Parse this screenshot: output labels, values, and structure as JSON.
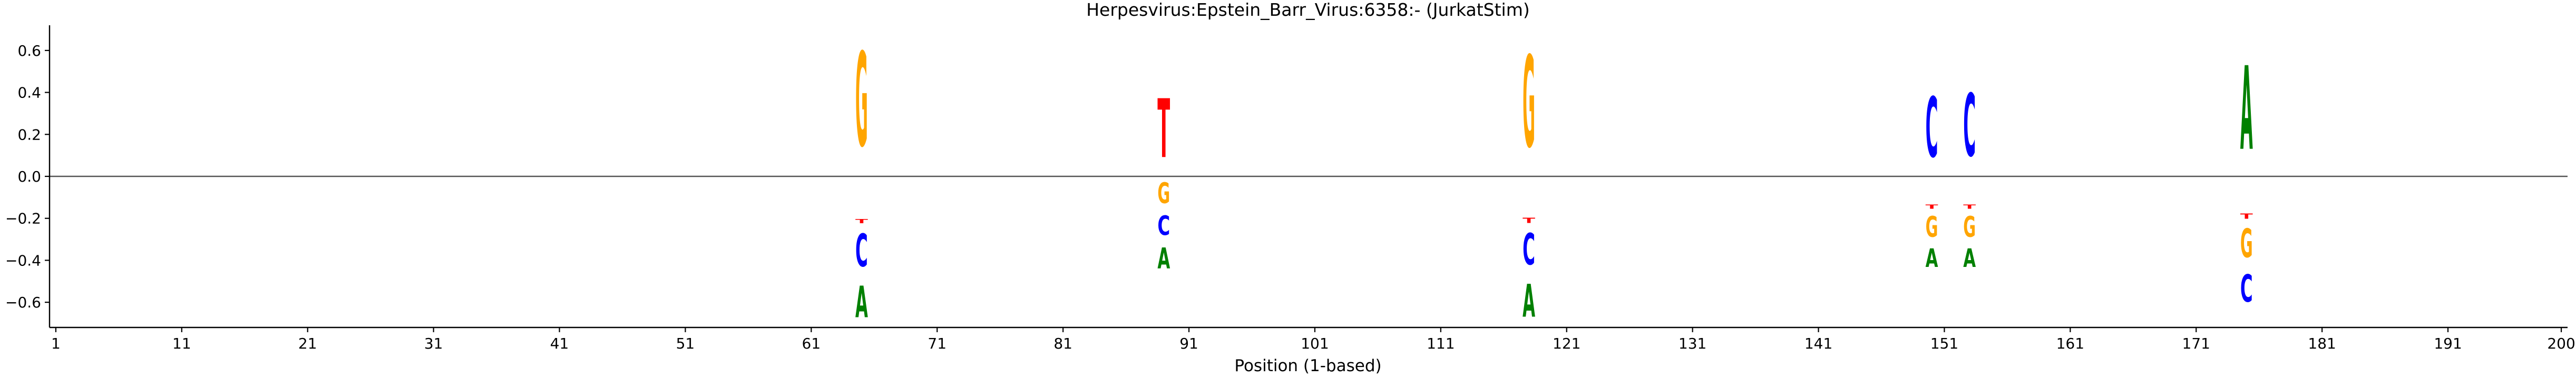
{
  "chart_data": {
    "type": "sequence-logo",
    "title": "Herpesvirus:Epstein_Barr_Virus:6358:-  (JurkatStim)",
    "xlabel": "Position (1-based)",
    "ylabel": "",
    "xlim": [
      0.5,
      200.5
    ],
    "ylim": [
      -0.72,
      0.72
    ],
    "x_ticks": [
      1,
      11,
      21,
      31,
      41,
      51,
      61,
      71,
      81,
      91,
      101,
      111,
      121,
      131,
      141,
      151,
      161,
      171,
      181,
      191,
      200
    ],
    "y_ticks": [
      -0.6,
      -0.4,
      -0.2,
      0.0,
      0.2,
      0.4,
      0.6
    ],
    "y_tick_labels": [
      "−0.6",
      "−0.4",
      "−0.2",
      "0.0",
      "0.2",
      "0.4",
      "0.6"
    ],
    "colors": {
      "A": "#008000",
      "C": "#0000ff",
      "G": "#ffa500",
      "T": "#ff0000",
      "zero_line": "#555555"
    },
    "positions": [
      {
        "x": 65,
        "letters": [
          {
            "base": "G",
            "bottom": 0.0,
            "top": 0.72
          },
          {
            "base": "T",
            "bottom": -0.23,
            "top": -0.2
          },
          {
            "base": "C",
            "bottom": -0.48,
            "top": -0.23
          },
          {
            "base": "A",
            "bottom": -0.72,
            "top": -0.48
          }
        ]
      },
      {
        "x": 89,
        "letters": [
          {
            "base": "T",
            "bottom": 0.0,
            "top": 0.45
          },
          {
            "base": "G",
            "bottom": -0.16,
            "top": 0.0
          },
          {
            "base": "C",
            "bottom": -0.31,
            "top": -0.16
          },
          {
            "base": "A",
            "bottom": -0.47,
            "top": -0.31
          }
        ]
      },
      {
        "x": 118,
        "letters": [
          {
            "base": "G",
            "bottom": 0.0,
            "top": 0.7
          },
          {
            "base": "T",
            "bottom": -0.23,
            "top": -0.19
          },
          {
            "base": "C",
            "bottom": -0.47,
            "top": -0.23
          },
          {
            "base": "A",
            "bottom": -0.72,
            "top": -0.47
          }
        ]
      },
      {
        "x": 150,
        "letters": [
          {
            "base": "C",
            "bottom": 0.0,
            "top": 0.46
          },
          {
            "base": "T",
            "bottom": -0.16,
            "top": -0.13
          },
          {
            "base": "G",
            "bottom": -0.32,
            "top": -0.16
          },
          {
            "base": "A",
            "bottom": -0.46,
            "top": -0.32
          }
        ]
      },
      {
        "x": 153,
        "letters": [
          {
            "base": "C",
            "bottom": 0.0,
            "top": 0.48
          },
          {
            "base": "T",
            "bottom": -0.16,
            "top": -0.13
          },
          {
            "base": "G",
            "bottom": -0.32,
            "top": -0.16
          },
          {
            "base": "A",
            "bottom": -0.46,
            "top": -0.32
          }
        ]
      },
      {
        "x": 175,
        "letters": [
          {
            "base": "A",
            "bottom": 0.0,
            "top": 0.64
          },
          {
            "base": "T",
            "bottom": -0.21,
            "top": -0.17
          },
          {
            "base": "G",
            "bottom": -0.43,
            "top": -0.21
          },
          {
            "base": "C",
            "bottom": -0.64,
            "top": -0.43
          }
        ]
      }
    ]
  }
}
